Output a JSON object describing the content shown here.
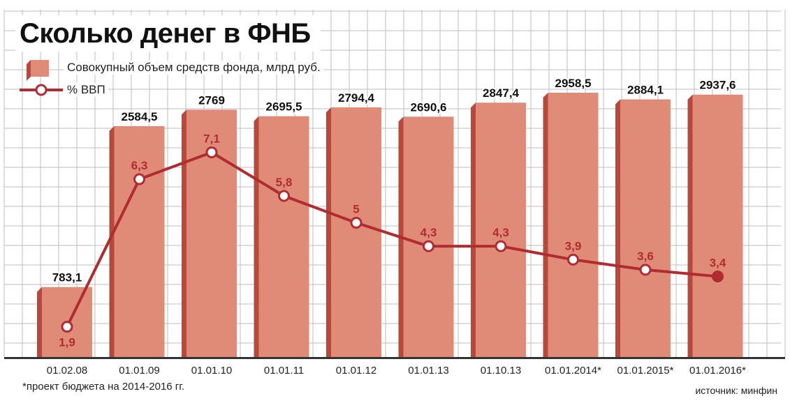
{
  "title": "Сколько денег в ФНБ",
  "legend": {
    "bars_label": "Совокупный объем средств фонда, млрд руб.",
    "line_label": "% ВВП"
  },
  "footnote": "*проект бюджета на 2014-2016 гг.",
  "source": "источник: минфин",
  "colors": {
    "bar": "#e08a78",
    "bar_dark": "#b8483c",
    "line": "#b02c30",
    "grid": "#bdbdbd"
  },
  "chart_data": {
    "type": "bar",
    "categories": [
      "01.02.08",
      "01.01.09",
      "01.01.10",
      "01.01.11",
      "01.01.12",
      "01.01.13",
      "01.10.13",
      "01.01.2014*",
      "01.01.2015*",
      "01.01.2016*"
    ],
    "series": [
      {
        "name": "Совокупный объем средств фонда, млрд руб.",
        "type": "bar",
        "values": [
          783.1,
          2584.5,
          2769,
          2695.5,
          2794.4,
          2690.6,
          2847.4,
          2958.5,
          2884.1,
          2937.6
        ],
        "labels": [
          "783,1",
          "2584,5",
          "2769",
          "2695,5",
          "2794,4",
          "2690,6",
          "2847,4",
          "2958,5",
          "2884,1",
          "2937,6"
        ]
      },
      {
        "name": "% ВВП",
        "type": "line",
        "values": [
          1.9,
          6.3,
          7.1,
          5.8,
          5,
          4.3,
          4.3,
          3.9,
          3.6,
          3.4
        ],
        "labels": [
          "1,9",
          "6,3",
          "7,1",
          "5,8",
          "5",
          "4,3",
          "4,3",
          "3,9",
          "3,6",
          "3,4"
        ]
      }
    ],
    "grid": true,
    "legend_position": "top-left"
  }
}
